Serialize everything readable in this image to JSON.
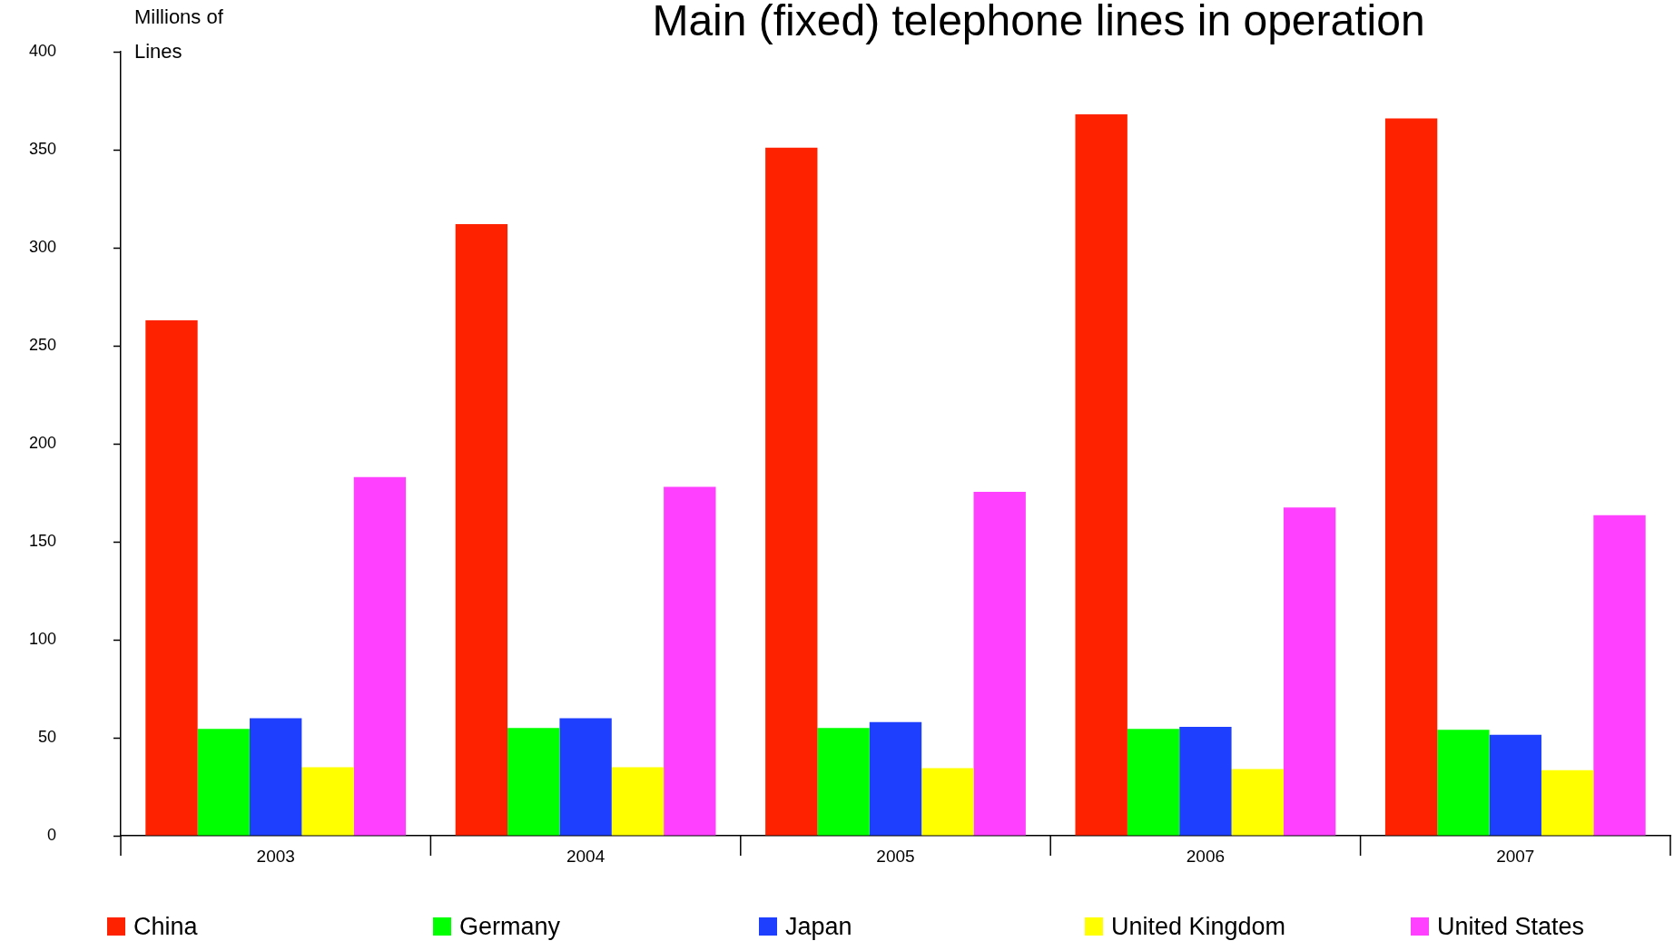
{
  "chart_data": {
    "type": "bar",
    "title": "Main (fixed) telephone lines in operation",
    "ylabel": "Millions of Lines",
    "categories": [
      "2003",
      "2004",
      "2005",
      "2006",
      "2007"
    ],
    "series": [
      {
        "name": "China",
        "color": "#ff2200",
        "values": [
          263,
          312,
          351,
          368,
          366
        ]
      },
      {
        "name": "Germany",
        "color": "#00ff00",
        "values": [
          54.5,
          55,
          55,
          54.5,
          54
        ]
      },
      {
        "name": "Japan",
        "color": "#1f3fff",
        "values": [
          60,
          60,
          58,
          55.5,
          51.5
        ]
      },
      {
        "name": "United Kingdom",
        "color": "#ffff00",
        "values": [
          35,
          35,
          34.5,
          34,
          33.5
        ]
      },
      {
        "name": "United States",
        "color": "#ff40ff",
        "values": [
          183,
          178,
          175.5,
          167.5,
          163.5
        ]
      }
    ],
    "ylim": [
      0,
      400
    ],
    "yticks": [
      0,
      50,
      100,
      150,
      200,
      250,
      300,
      350,
      400
    ],
    "grid": false,
    "legend": "bottom"
  }
}
